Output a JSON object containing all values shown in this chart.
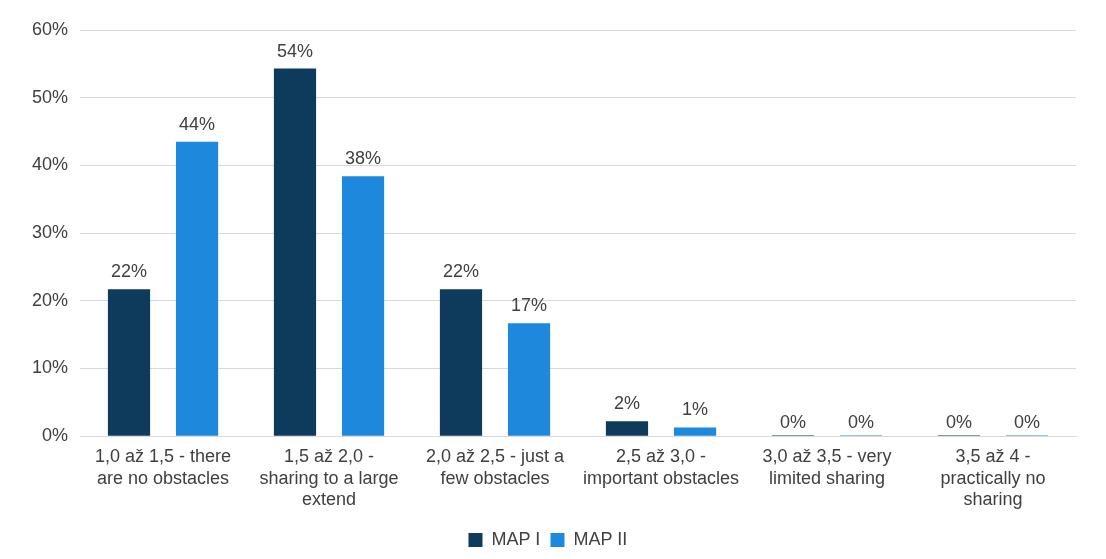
{
  "chart_data": {
    "type": "bar",
    "categories": [
      "1,0 až 1,5 - there are no obstacles",
      "1,5 až 2,0 - sharing to a large extend",
      "2,0 až 2,5 - just a few obstacles",
      "2,5 až 3,0 - important obstacles",
      "3,0 až 3,5 - very limited sharing",
      "3,5 až 4 - practically no sharing"
    ],
    "series": [
      {
        "name": "MAP I",
        "color": "#0e3a5c",
        "values": [
          21.7,
          54.3,
          21.7,
          2.2,
          0,
          0
        ],
        "value_labels": [
          "22%",
          "54%",
          "22%",
          "2%",
          "0%",
          "0%"
        ]
      },
      {
        "name": "MAP II",
        "color": "#1e88dc",
        "values": [
          43.5,
          38.4,
          16.7,
          1.3,
          0,
          0
        ],
        "value_labels": [
          "44%",
          "38%",
          "17%",
          "1%",
          "0%",
          "0%"
        ]
      }
    ],
    "ylim": [
      0,
      60
    ],
    "yticks": [
      {
        "value": 0,
        "label": "0%"
      },
      {
        "value": 10,
        "label": "10%"
      },
      {
        "value": 20,
        "label": "20%"
      },
      {
        "value": 30,
        "label": "30%"
      },
      {
        "value": 40,
        "label": "40%"
      },
      {
        "value": 50,
        "label": "50%"
      },
      {
        "value": 60,
        "label": "60%"
      }
    ],
    "grid": "y",
    "legend": "bottom"
  }
}
